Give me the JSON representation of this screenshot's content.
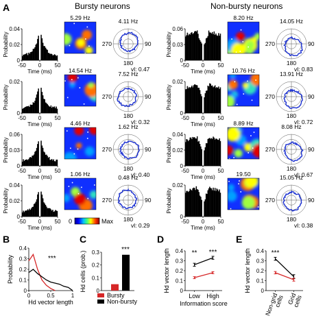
{
  "panel_labels": [
    "A",
    "B",
    "C",
    "D",
    "E"
  ],
  "panel_a": {
    "group_titles": [
      "Bursty neurons",
      "Non-bursty neurons"
    ],
    "groups": [
      {
        "rows": [
          {
            "ymax": 0.04,
            "ytick_labels": [
              "0.04",
              "0.02",
              "0"
            ],
            "rate": "5.29 Hz",
            "polar_peak": "4.11 Hz",
            "vl": "vl: 0.47"
          },
          {
            "ymax": 0.02,
            "ytick_labels": [
              "0.02",
              "0"
            ],
            "rate": "14.54 Hz",
            "polar_peak": "7.52 Hz",
            "vl": "vl: 0.32"
          },
          {
            "ymax": 0.06,
            "ytick_labels": [
              "0.06",
              "0.03",
              "0"
            ],
            "rate": "4.46 Hz",
            "polar_peak": "1.62 Hz",
            "vl": "vl: 0.40"
          },
          {
            "ymax": 0.04,
            "ytick_labels": [
              "0.04",
              "0.02",
              "0"
            ],
            "rate": "1.06 Hz",
            "polar_peak": "0.48 Hz",
            "vl": "vl: 0.29"
          }
        ]
      },
      {
        "rows": [
          {
            "ymax": 0.06,
            "ytick_labels": [
              "0.06",
              "0.03",
              "0"
            ],
            "rate": "8.20 Hz",
            "polar_peak": "14.05 Hz",
            "vl": "vl: 0.83"
          },
          {
            "ymax": 0.02,
            "ytick_labels": [
              "0.02",
              "0"
            ],
            "rate": "10.76 Hz",
            "polar_peak": "13.91 Hz",
            "vl": "vl: 0.72"
          },
          {
            "ymax": 0.04,
            "ytick_labels": [
              "0.04",
              "0.02",
              "0"
            ],
            "rate": "8.89 Hz",
            "polar_peak": "8.08 Hz",
            "vl": "vl: 0.67"
          },
          {
            "ymax": 0.02,
            "ytick_labels": [
              "0.02",
              "0"
            ],
            "rate": "19.50",
            "polar_peak": "15.05 Hz",
            "vl": "vl: 0.38"
          }
        ]
      }
    ],
    "hist_xticks": [
      "-50",
      "0",
      "50"
    ],
    "hist_xlabel": "Time (ms)",
    "hist_ylabel": "Probability",
    "polar_labels": {
      "left": "270",
      "right": "90",
      "bottom": "180"
    },
    "colorbar": {
      "min_label": "0",
      "max_label": "Max"
    }
  },
  "chart_data": [
    {
      "panel": "B",
      "type": "line",
      "xlabel": "Hd vector length",
      "ylabel": "Probability",
      "xlim": [
        0,
        1
      ],
      "ylim": [
        0,
        0.4
      ],
      "xticks": [
        0,
        0.5,
        1
      ],
      "yticks": [
        0,
        0.1,
        0.2,
        0.3,
        0.4
      ],
      "significance": "***",
      "series": [
        {
          "color": "#d62728",
          "x": [
            0,
            0.1,
            0.2,
            0.3,
            0.4,
            0.5,
            0.6
          ],
          "y": [
            0.28,
            0.34,
            0.2,
            0.1,
            0.05,
            0.02,
            0.0
          ]
        },
        {
          "color": "#000000",
          "x": [
            0,
            0.1,
            0.2,
            0.3,
            0.4,
            0.5,
            0.6,
            0.7,
            0.8,
            0.9,
            1.0
          ],
          "y": [
            0.17,
            0.2,
            0.16,
            0.13,
            0.1,
            0.08,
            0.07,
            0.06,
            0.04,
            0.03,
            0.0
          ]
        }
      ]
    },
    {
      "panel": "C",
      "type": "bar",
      "ylabel": "Hd cells (prob.)",
      "ylim": [
        0,
        0.3
      ],
      "yticks": [
        0,
        0.1,
        0.2,
        0.3
      ],
      "significance": "***",
      "series": [
        {
          "name": "Bursty",
          "color": "#d62728",
          "value": 0.05
        },
        {
          "name": "Non-bursty",
          "color": "#000000",
          "value": 0.28
        }
      ]
    },
    {
      "panel": "D",
      "type": "line",
      "xlabel": "Information score",
      "ylabel": "Hd vector length",
      "categories": [
        "Low",
        "High"
      ],
      "ylim": [
        0,
        0.4
      ],
      "yticks": [
        0,
        0.1,
        0.2,
        0.3,
        0.4
      ],
      "significance": [
        "**",
        "***"
      ],
      "series": [
        {
          "color": "#000000",
          "values": [
            0.26,
            0.33
          ],
          "err": [
            0.015,
            0.015
          ]
        },
        {
          "color": "#d62728",
          "values": [
            0.13,
            0.18
          ],
          "err": [
            0.01,
            0.01
          ]
        }
      ]
    },
    {
      "panel": "E",
      "type": "line",
      "ylabel": "Hd vector length",
      "categories": [
        "Non-grid cells",
        "Grid cells"
      ],
      "ylim": [
        0,
        0.4
      ],
      "yticks": [
        0,
        0.1,
        0.2,
        0.3,
        0.4
      ],
      "significance": "***",
      "series": [
        {
          "color": "#000000",
          "values": [
            0.32,
            0.14
          ],
          "err": [
            0.015,
            0.02
          ]
        },
        {
          "color": "#d62728",
          "values": [
            0.18,
            0.11
          ],
          "err": [
            0.012,
            0.015
          ]
        }
      ]
    }
  ]
}
